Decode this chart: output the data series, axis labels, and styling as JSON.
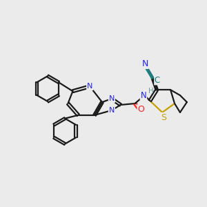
{
  "background_color": "#ebebeb",
  "bond_color": "#1a1a1a",
  "N_color": "#2020ff",
  "O_color": "#ff2020",
  "S_color": "#c8a000",
  "CN_color": "#1a7a7a",
  "H_color": "#6a9a9a",
  "lw": 1.6,
  "lw_thin": 1.3,
  "figsize": [
    3.0,
    3.0
  ],
  "dpi": 100,
  "xlim": [
    0,
    10
  ],
  "ylim": [
    0,
    10
  ]
}
